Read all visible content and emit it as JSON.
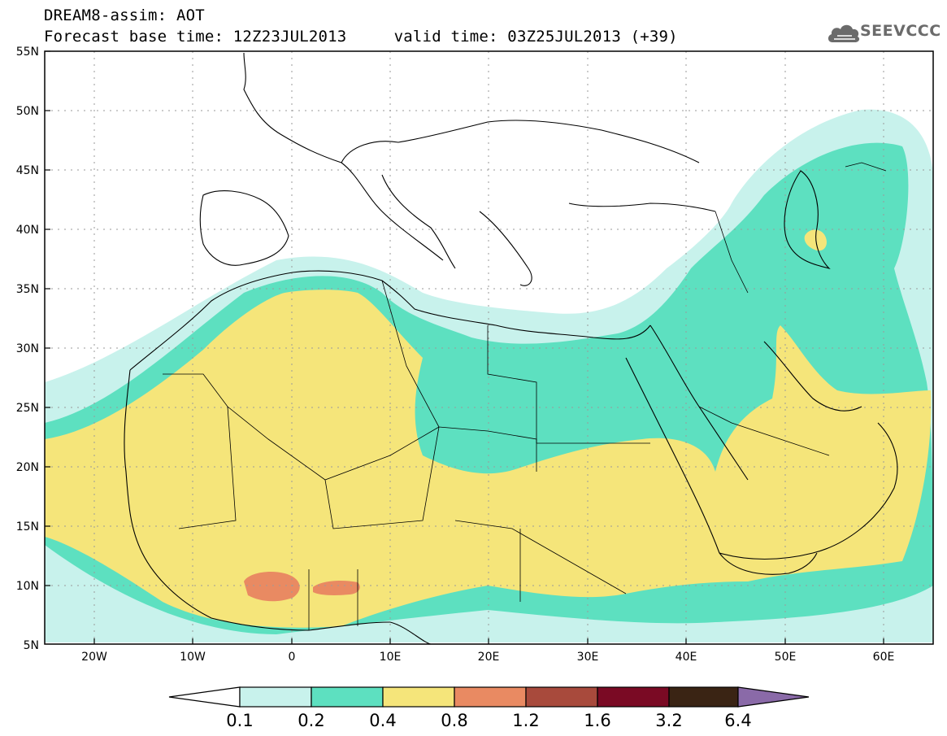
{
  "title": {
    "line1": "DREAM8-assim: AOT",
    "line2": "Forecast base time: 12Z23JUL2013     valid time: 03Z25JUL2013 (+39)"
  },
  "logo": {
    "text": "SEEVCCC",
    "icon": "cloud-icon"
  },
  "map": {
    "lon_range": [
      -25,
      65
    ],
    "lat_range": [
      5,
      55
    ],
    "lat_labels": [
      "55N",
      "50N",
      "45N",
      "40N",
      "35N",
      "30N",
      "25N",
      "20N",
      "15N",
      "10N",
      "5N"
    ],
    "lon_labels": [
      "20W",
      "10W",
      "0",
      "10E",
      "20E",
      "30E",
      "40E",
      "50E",
      "60E"
    ],
    "grid": true
  },
  "colorbar": {
    "labels": [
      "0.1",
      "0.2",
      "0.4",
      "0.8",
      "1.2",
      "1.6",
      "3.2",
      "6.4"
    ],
    "colors": [
      "#c8f2ec",
      "#5de0c0",
      "#f5e57a",
      "#e98a62",
      "#a84a3c",
      "#7a0a24",
      "#3a2414",
      "#8a6aa8"
    ],
    "under_color": "#ffffff"
  }
}
